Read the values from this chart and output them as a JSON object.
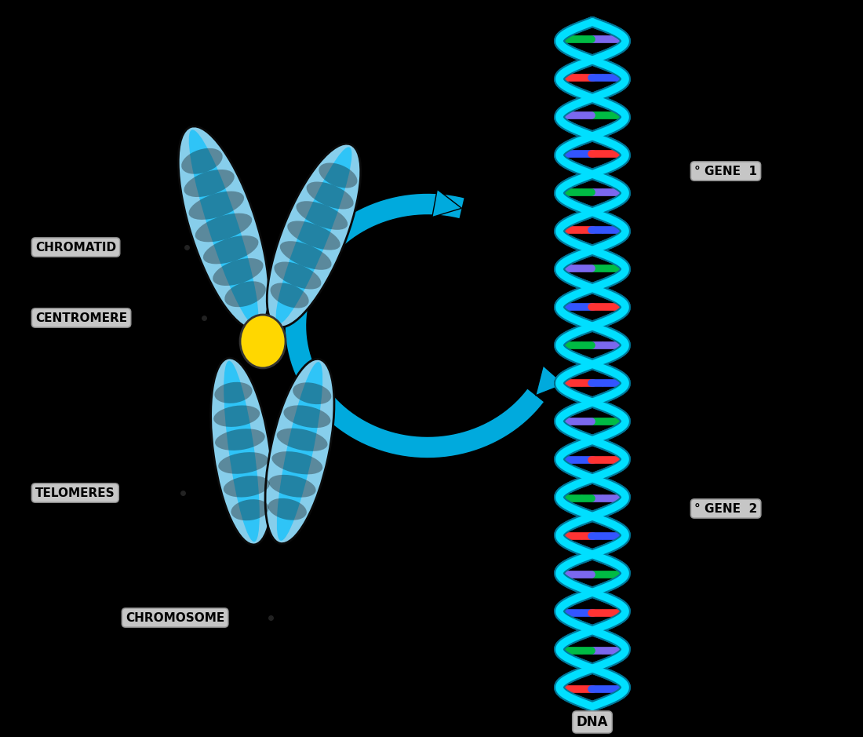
{
  "background_color": "#000000",
  "chrom_light": "#87CEEB",
  "chrom_mid": "#00BFFF",
  "chrom_dark": "#1E8FCC",
  "chrom_outline": "#0A0A0A",
  "centromere_color": "#FFD700",
  "dna_backbone_color": "#00DFFF",
  "dna_backbone_dark": "#007799",
  "dna_base_colors": [
    "#7B68EE",
    "#FF3333",
    "#00BB44",
    "#3355FF"
  ],
  "mag_arc_color": "#00AADD",
  "label_bg": "#D8D8D8",
  "label_edge": "#888888",
  "label_text": "#000000",
  "labels": {
    "chromatid": "CHROMATID",
    "centromere": "CENTROMERE",
    "telomeres": "TELOMERES",
    "chromosome": "CHROMOSOME",
    "gene1": "GENE 1",
    "gene2": "GENE 2",
    "dna": "DNA"
  }
}
